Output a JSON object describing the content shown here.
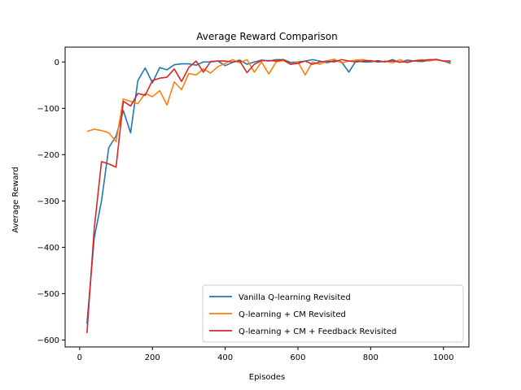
{
  "chart_data": {
    "type": "line",
    "title": "Average Reward Comparison",
    "xlabel": "Episodes",
    "ylabel": "Average Reward",
    "xlim": [
      -40,
      1070
    ],
    "ylim": [
      -615,
      32
    ],
    "xticks": [
      0,
      200,
      400,
      600,
      800,
      1000
    ],
    "yticks": [
      -600,
      -500,
      -400,
      -300,
      -200,
      -100,
      0
    ],
    "grid": false,
    "legend_position": "lower-right",
    "x": [
      20,
      40,
      60,
      80,
      100,
      120,
      140,
      160,
      180,
      200,
      220,
      240,
      260,
      280,
      300,
      320,
      340,
      360,
      380,
      400,
      420,
      440,
      460,
      480,
      500,
      520,
      540,
      560,
      580,
      600,
      620,
      640,
      660,
      680,
      700,
      720,
      740,
      760,
      780,
      800,
      820,
      840,
      860,
      880,
      900,
      920,
      940,
      960,
      980,
      1000,
      1020
    ],
    "series": [
      {
        "name": "Vanilla Q-learning Revisited",
        "color": "#1f77b4",
        "values": [
          -565,
          -380,
          -300,
          -185,
          -160,
          -105,
          -153,
          -40,
          -13,
          -45,
          -12,
          -17,
          -6,
          -4,
          -4,
          -7,
          0,
          0,
          2,
          -8,
          -1,
          4,
          -5,
          0,
          4,
          2,
          5,
          5,
          -1,
          0,
          2,
          5,
          2,
          -2,
          3,
          0,
          -22,
          3,
          0,
          0,
          3,
          0,
          5,
          -1,
          4,
          2,
          1,
          3,
          5,
          2,
          -3
        ]
      },
      {
        "name": "Q-learning + CM Revisited",
        "color": "#ff7f0e",
        "values": [
          -150,
          -145,
          -148,
          -153,
          -172,
          -80,
          -85,
          -90,
          -68,
          -75,
          -62,
          -93,
          -43,
          -60,
          -25,
          -28,
          -15,
          -24,
          -10,
          -3,
          5,
          -2,
          5,
          -22,
          0,
          -26,
          0,
          3,
          -5,
          0,
          -28,
          0,
          -5,
          2,
          6,
          -2,
          2,
          4,
          5,
          2,
          0,
          2,
          -2,
          5,
          -2,
          3,
          5,
          2,
          6,
          2,
          0
        ]
      },
      {
        "name": "Q-learning + CM + Feedback Revisited",
        "color": "#d62728",
        "values": [
          -585,
          -360,
          -215,
          -220,
          -227,
          -85,
          -95,
          -68,
          -72,
          -40,
          -35,
          -33,
          -15,
          -42,
          -12,
          2,
          -22,
          1,
          2,
          2,
          0,
          2,
          -23,
          -5,
          3,
          3,
          2,
          5,
          -5,
          -3,
          2,
          -5,
          0,
          2,
          0,
          5,
          2,
          0,
          2,
          3,
          0,
          1,
          2,
          0,
          0,
          2,
          3,
          5,
          5,
          2,
          2
        ]
      }
    ]
  }
}
